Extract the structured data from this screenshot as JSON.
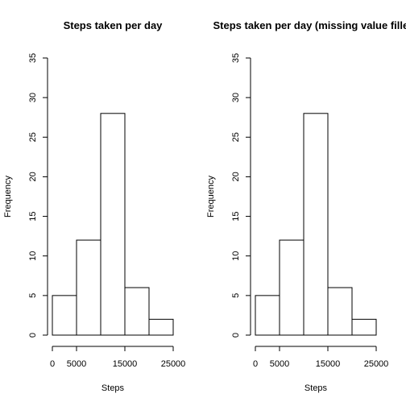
{
  "chart_data": [
    {
      "type": "bar",
      "title": "Steps taken per day",
      "xlabel": "Steps",
      "ylabel": "Frequency",
      "bins": [
        [
          0,
          5000
        ],
        [
          5000,
          10000
        ],
        [
          10000,
          15000
        ],
        [
          15000,
          20000
        ],
        [
          20000,
          25000
        ]
      ],
      "values": [
        5,
        12,
        28,
        6,
        2
      ],
      "xticks": [
        0,
        5000,
        15000,
        25000
      ],
      "xlim": [
        0,
        25000
      ],
      "yticks": [
        0,
        5,
        10,
        15,
        20,
        25,
        30,
        35
      ],
      "ylim": [
        0,
        35
      ],
      "grid": false
    },
    {
      "type": "bar",
      "title": "Steps taken per day (missing value filled)",
      "xlabel": "Steps",
      "ylabel": "Frequency",
      "bins": [
        [
          0,
          5000
        ],
        [
          5000,
          10000
        ],
        [
          10000,
          15000
        ],
        [
          15000,
          20000
        ],
        [
          20000,
          25000
        ]
      ],
      "values": [
        5,
        12,
        28,
        6,
        2
      ],
      "xticks": [
        0,
        5000,
        15000,
        25000
      ],
      "xlim": [
        0,
        25000
      ],
      "yticks": [
        0,
        5,
        10,
        15,
        20,
        25,
        30,
        35
      ],
      "ylim": [
        0,
        35
      ],
      "grid": false
    }
  ],
  "colors": {
    "bar_fill": "#ffffff",
    "bar_stroke": "#000000",
    "axis": "#000000"
  }
}
